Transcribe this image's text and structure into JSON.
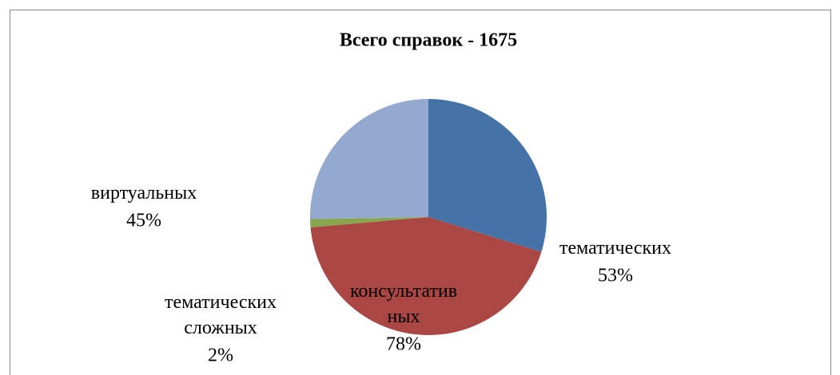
{
  "chart_data": {
    "type": "pie",
    "title": "Всего справок - 1675",
    "categories": [
      "тематических",
      "консультативных",
      "тематических сложных",
      "виртуальных"
    ],
    "values": [
      53,
      78,
      2,
      45
    ],
    "value_labels": [
      "53%",
      "78%",
      "2%",
      "45%"
    ],
    "colors": [
      "#4572a7",
      "#aa4643",
      "#89a54e",
      "#93a9cf"
    ]
  }
}
